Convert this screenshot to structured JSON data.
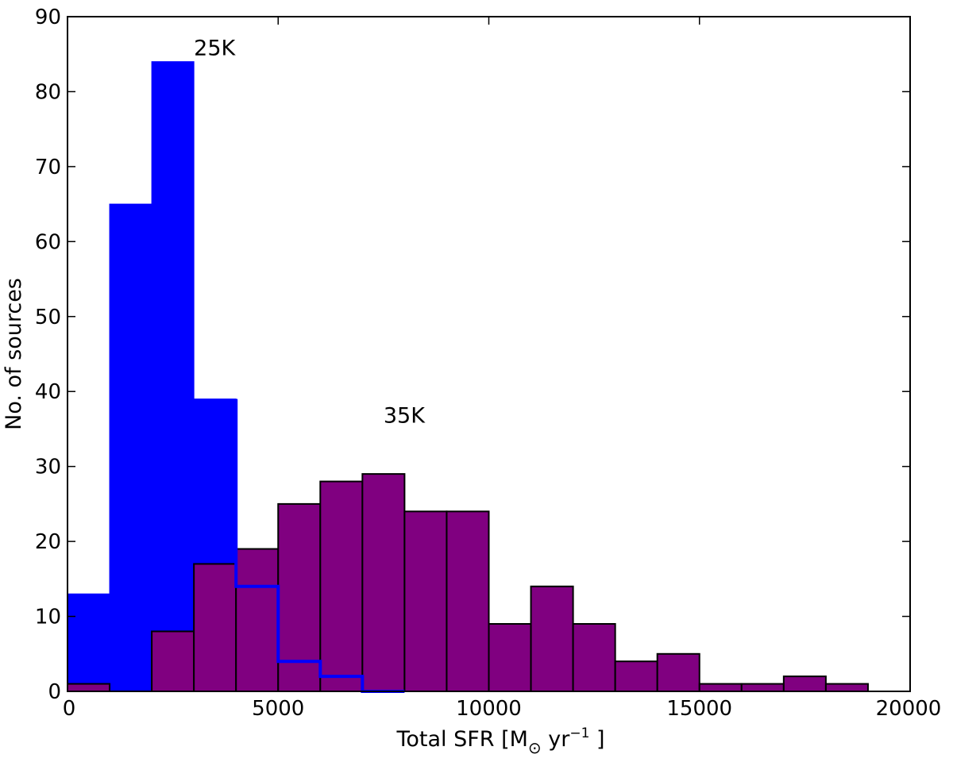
{
  "chart_data": {
    "type": "bar",
    "title": "",
    "xlabel": {
      "base": "Total SFR [M",
      "sub": "⊙",
      "mid": " yr",
      "sup": "−1",
      "end": " ]"
    },
    "ylabel": "No. of sources",
    "xlim": [
      0,
      20000
    ],
    "ylim": [
      0,
      90
    ],
    "xticks": [
      0,
      5000,
      10000,
      15000,
      20000
    ],
    "yticks": [
      0,
      10,
      20,
      30,
      40,
      50,
      60,
      70,
      80,
      90
    ],
    "grid": false,
    "bin_width": 1000,
    "series": [
      {
        "label_text": "25K",
        "label_at": {
          "x": 3000,
          "y": 84
        },
        "color": "#0000ff",
        "bin_starts": [
          0,
          1000,
          2000,
          3000,
          4000,
          5000,
          6000,
          7000
        ],
        "counts": [
          13,
          65,
          84,
          39,
          14,
          4,
          2,
          0
        ]
      },
      {
        "label_text": "35K",
        "label_at": {
          "x": 7500,
          "y": 35
        },
        "color": "#800080",
        "bin_starts": [
          0,
          1000,
          2000,
          3000,
          4000,
          5000,
          6000,
          7000,
          8000,
          9000,
          10000,
          11000,
          12000,
          13000,
          14000,
          15000,
          16000,
          17000,
          18000,
          19000
        ],
        "counts": [
          1,
          0,
          8,
          17,
          19,
          25,
          28,
          29,
          24,
          24,
          9,
          14,
          9,
          4,
          5,
          1,
          1,
          2,
          1,
          0
        ]
      }
    ]
  }
}
